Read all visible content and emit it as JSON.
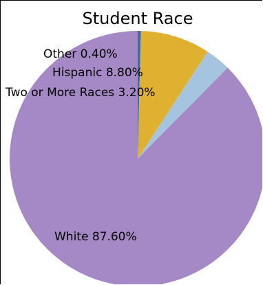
{
  "chart_data": {
    "type": "pie",
    "title": "Student Race",
    "slices": [
      {
        "label": "Other",
        "value": 0.4,
        "display": "Other 0.40%",
        "color": "#3a6ea5"
      },
      {
        "label": "Hispanic",
        "value": 8.8,
        "display": "Hispanic 8.80%",
        "color": "#e0b030"
      },
      {
        "label": "Two or More Races",
        "value": 3.2,
        "display": "Two or More Races 3.20%",
        "color": "#a4c4df"
      },
      {
        "label": "White",
        "value": 87.6,
        "display": "White 87.60%",
        "color": "#a589c6"
      }
    ],
    "start_angle": "top",
    "direction": "clockwise",
    "legend": "none"
  }
}
